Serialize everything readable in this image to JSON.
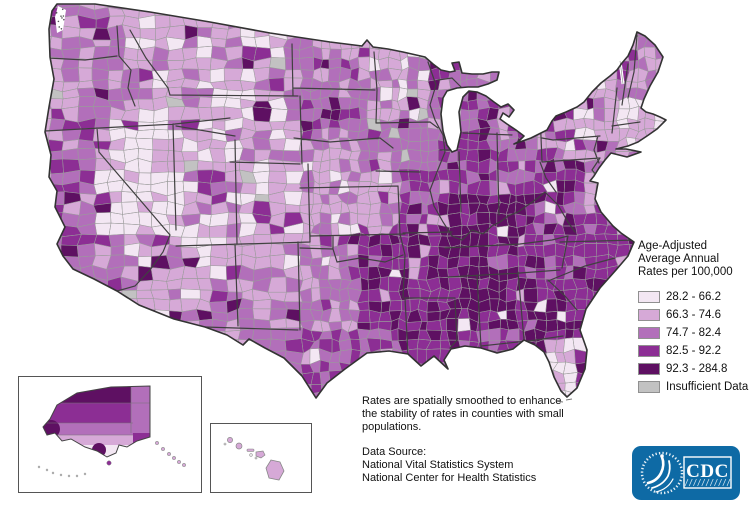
{
  "legend": {
    "title_lines": [
      "Age-Adjusted",
      "Average Annual",
      "Rates per 100,000"
    ],
    "classes": [
      {
        "label": "28.2 - 66.2",
        "color": "#f3e7f3"
      },
      {
        "label": "66.3 - 74.6",
        "color": "#d6a9d7"
      },
      {
        "label": "74.7 - 82.4",
        "color": "#b26fba"
      },
      {
        "label": "82.5 - 92.2",
        "color": "#8c2e94"
      },
      {
        "label": "92.3 - 284.8",
        "color": "#5e1062"
      },
      {
        "label": "Insufficient Data",
        "color": "#c2c2c2"
      }
    ]
  },
  "notes": {
    "lines": [
      "Rates are spatially smoothed to enhance",
      "the stability of rates in counties with small",
      "populations."
    ]
  },
  "data_source": {
    "label": "Data Source:",
    "lines": [
      "National Vital Statistics System",
      "National Center for Health Statistics"
    ]
  },
  "insets": {
    "alaska": "Alaska",
    "hawaii": "Hawaii"
  },
  "logo": {
    "text": "CDC",
    "color": "#0e6aa5"
  },
  "map": {
    "outline_color": "#333333",
    "state_line_color": "#404040",
    "county_line_color": "#9b9b9b",
    "water_color": "#ffffff"
  }
}
